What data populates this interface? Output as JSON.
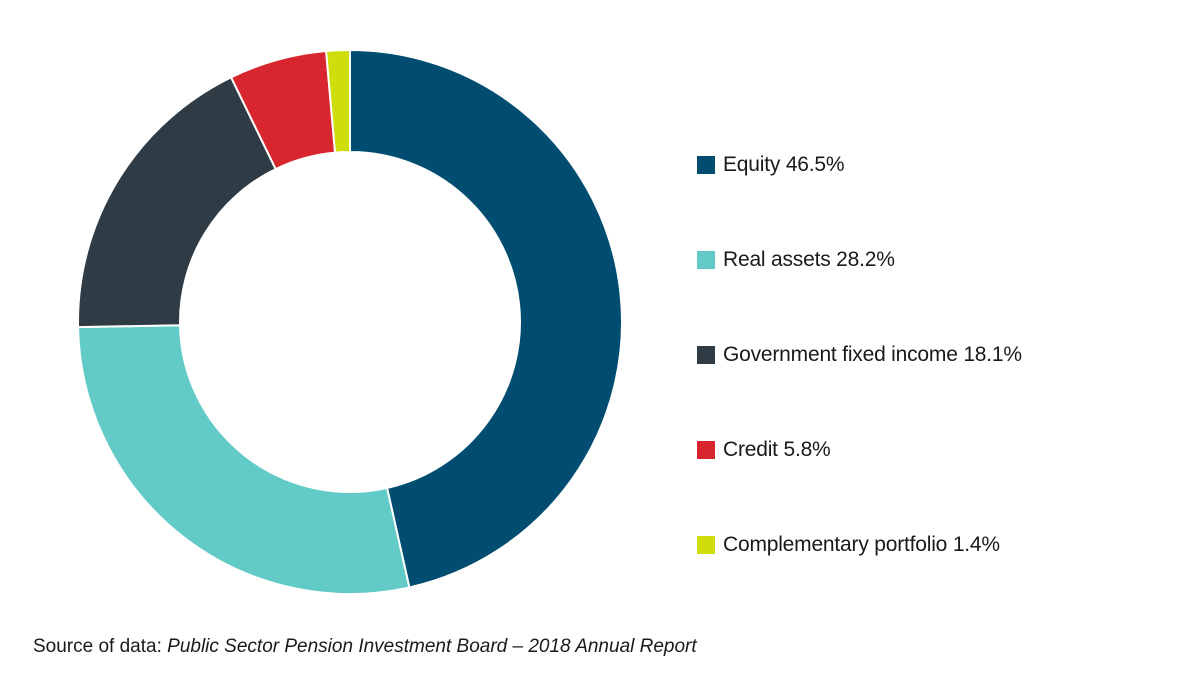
{
  "chart_data": {
    "type": "pie",
    "donut": true,
    "title": "",
    "legend_position": "right",
    "slices": [
      {
        "label": "Equity",
        "value": 46.5,
        "display": "46.5%",
        "color": "#014d71"
      },
      {
        "label": "Real assets",
        "value": 28.2,
        "display": "28.2%",
        "color": "#62cbc8"
      },
      {
        "label": "Government fixed income",
        "value": 18.1,
        "display": "18.1%",
        "color": "#2f3c46"
      },
      {
        "label": "Credit",
        "value": 5.8,
        "display": "5.8%",
        "color": "#d7262e"
      },
      {
        "label": "Complementary portfolio",
        "value": 1.4,
        "display": "1.4%",
        "color": "#cfdd0a"
      }
    ]
  },
  "source": {
    "prefix": "Source of data: ",
    "name": "Public Sector Pension Investment Board – 2018 Annual Report"
  }
}
